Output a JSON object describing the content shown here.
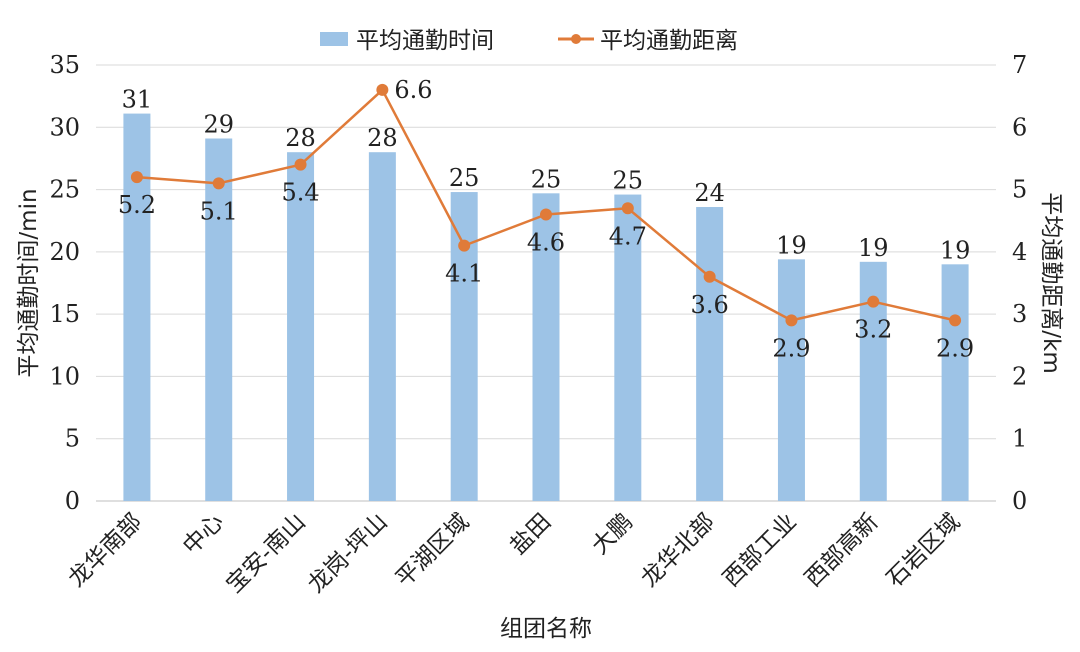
{
  "chart_data": {
    "type": "bar",
    "categories": [
      "龙华南部",
      "中心",
      "宝安-南山",
      "龙岗-坪山",
      "平湖区域",
      "盐田",
      "大鹏",
      "龙华北部",
      "西部工业",
      "西部高新",
      "石岩区域"
    ],
    "series": [
      {
        "name": "平均通勤时间",
        "type": "bar",
        "axis": "left",
        "color": "#9DC3E6",
        "values": [
          31.1,
          29.1,
          28.0,
          28.0,
          24.8,
          24.7,
          24.6,
          23.6,
          19.4,
          19.2,
          19.0
        ],
        "labels": [
          "31",
          "29",
          "28",
          "28",
          "25",
          "25",
          "25",
          "24",
          "19",
          "19",
          "19"
        ]
      },
      {
        "name": "平均通勤距离",
        "type": "line",
        "axis": "right",
        "color": "#E07B39",
        "values": [
          5.2,
          5.1,
          5.4,
          6.6,
          4.1,
          4.6,
          4.7,
          3.6,
          2.9,
          3.2,
          2.9
        ],
        "labels": [
          "5.2",
          "5.1",
          "5.4",
          "6.6",
          "4.1",
          "4.6",
          "4.7",
          "3.6",
          "2.9",
          "3.2",
          "2.9"
        ]
      }
    ],
    "xlabel": "组团名称",
    "ylabel": "平均通勤时间/min",
    "y2label": "平均通勤距离/km",
    "ylim": [
      0,
      35
    ],
    "y2lim": [
      0,
      7
    ],
    "yticks": [
      0,
      5,
      10,
      15,
      20,
      25,
      30,
      35
    ],
    "y2ticks": [
      0,
      1,
      2,
      3,
      4,
      5,
      6,
      7
    ],
    "grid": true,
    "legend": "top-center"
  }
}
